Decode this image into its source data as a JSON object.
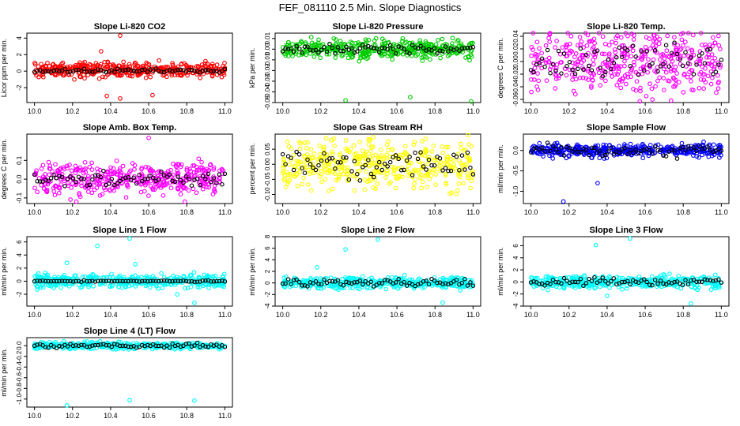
{
  "figure_title": "FEF_081110  2.5 Min. Slope Diagnostics",
  "chart_data": [
    {
      "type": "scatter",
      "title": "Slope Li-820 CO2",
      "ylabel": "Licor ppm per min.",
      "xlim": [
        9.96,
        11.04
      ],
      "ylim": [
        -3.8,
        4.6
      ],
      "xticks": [
        10.0,
        10.2,
        10.4,
        10.6,
        10.8,
        11.0
      ],
      "yticks": [
        -2,
        0,
        2,
        4
      ],
      "ytick_labels": [
        "-2",
        "0",
        "2",
        "4"
      ],
      "colors": {
        "gray": "#000000",
        "color": "#ff0000"
      },
      "series": [
        {
          "name": "color",
          "center": 0.2,
          "spread": 0.45,
          "outliers": [
            [
              10.45,
              4.3
            ],
            [
              10.45,
              -3.3
            ],
            [
              10.38,
              -3.0
            ],
            [
              10.62,
              -2.9
            ],
            [
              10.35,
              2.4
            ]
          ]
        },
        {
          "name": "black",
          "center": 0.05,
          "spread": 0.12,
          "outliers": []
        }
      ]
    },
    {
      "type": "scatter",
      "title": "Slope Li-820 Pressure",
      "ylabel": "kPa per min.",
      "xlim": [
        9.96,
        11.04
      ],
      "ylim": [
        -0.05,
        0.015
      ],
      "xticks": [
        10.0,
        10.2,
        10.4,
        10.6,
        10.8,
        11.0
      ],
      "yticks": [
        -0.05,
        -0.04,
        -0.03,
        -0.02,
        -0.01,
        0.0,
        0.01
      ],
      "ytick_labels": [
        "-0.05",
        "-0.04",
        "-0.03",
        "-0.02",
        "-0.01",
        "0.00",
        "0.01"
      ],
      "colors": {
        "gray": "#000000",
        "color": "#00cc00"
      },
      "series": [
        {
          "name": "color",
          "center": 0.0,
          "spread": 0.004,
          "outliers": [
            [
              10.33,
              -0.048
            ],
            [
              10.67,
              -0.045
            ],
            [
              10.99,
              -0.049
            ]
          ]
        },
        {
          "name": "black",
          "center": 0.0,
          "spread": 0.002,
          "outliers": []
        }
      ]
    },
    {
      "type": "scatter",
      "title": "Slope Li-820 Temp.",
      "ylabel": "degrees C per min.",
      "xlim": [
        9.96,
        11.04
      ],
      "ylim": [
        -0.065,
        0.045
      ],
      "xticks": [
        10.0,
        10.2,
        10.4,
        10.6,
        10.8,
        11.0
      ],
      "yticks": [
        -0.06,
        -0.04,
        -0.02,
        0.0,
        0.02,
        0.04
      ],
      "ytick_labels": [
        "-0.06",
        "-0.04",
        "-0.02",
        "0.00",
        "0.02",
        "0.04"
      ],
      "colors": {
        "gray": "#000000",
        "color": "#ff00ff"
      },
      "series": [
        {
          "name": "color",
          "center": 0.0,
          "spread": 0.025,
          "outliers": []
        },
        {
          "name": "black",
          "center": 0.0,
          "spread": 0.015,
          "outliers": []
        }
      ]
    },
    {
      "type": "scatter",
      "title": "Slope Amb. Box Temp.",
      "ylabel": "degrees C per min.",
      "xlim": [
        9.96,
        11.04
      ],
      "ylim": [
        -0.13,
        0.24
      ],
      "xticks": [
        10.0,
        10.2,
        10.4,
        10.6,
        10.8,
        11.0
      ],
      "yticks": [
        -0.1,
        0.0,
        0.1
      ],
      "ytick_labels": [
        "-0.1",
        "0.0",
        "0.1"
      ],
      "colors": {
        "gray": "#000000",
        "color": "#ff00ff"
      },
      "series": [
        {
          "name": "color",
          "center": 0.0,
          "spread": 0.04,
          "outliers": [
            [
              10.6,
              0.22
            ],
            [
              10.22,
              -0.12
            ],
            [
              10.79,
              -0.12
            ]
          ]
        },
        {
          "name": "black",
          "center": 0.0,
          "spread": 0.02,
          "outliers": []
        }
      ]
    },
    {
      "type": "scatter",
      "title": "Slope Gas Stream RH",
      "ylabel": "percent per min.",
      "xlim": [
        9.96,
        11.04
      ],
      "ylim": [
        -0.13,
        0.1
      ],
      "xticks": [
        10.0,
        10.2,
        10.4,
        10.6,
        10.8,
        11.0
      ],
      "yticks": [
        -0.1,
        -0.05,
        0.0,
        0.05
      ],
      "ytick_labels": [
        "-0.10",
        "-0.05",
        "0.00",
        "0.05"
      ],
      "colors": {
        "gray": "#000000",
        "color": "#ffff00"
      },
      "series": [
        {
          "name": "color",
          "center": 0.0,
          "spread": 0.04,
          "outliers": []
        },
        {
          "name": "black",
          "center": 0.0,
          "spread": 0.025,
          "outliers": []
        }
      ]
    },
    {
      "type": "scatter",
      "title": "Slope Sample Flow",
      "ylabel": "ml/min per min.",
      "xlim": [
        9.96,
        11.04
      ],
      "ylim": [
        -1.3,
        0.4
      ],
      "xticks": [
        10.0,
        10.2,
        10.4,
        10.6,
        10.8,
        11.0
      ],
      "yticks": [
        -1.0,
        -0.5,
        0.0
      ],
      "ytick_labels": [
        "-1.0",
        "-0.5",
        "0.0"
      ],
      "colors": {
        "gray": "#000000",
        "color": "#0000ff"
      },
      "series": [
        {
          "name": "color",
          "center": 0.0,
          "spread": 0.08,
          "outliers": [
            [
              10.17,
              -1.25
            ],
            [
              10.35,
              -0.8
            ]
          ]
        },
        {
          "name": "black",
          "center": 0.0,
          "spread": 0.08,
          "outliers": []
        }
      ]
    },
    {
      "type": "scatter",
      "title": "Slope Line 1 Flow",
      "ylabel": "ml/min per min.",
      "xlim": [
        9.96,
        11.04
      ],
      "ylim": [
        -3.8,
        6.8
      ],
      "xticks": [
        10.0,
        10.2,
        10.4,
        10.6,
        10.8,
        11.0
      ],
      "yticks": [
        -2,
        0,
        2,
        4,
        6
      ],
      "ytick_labels": [
        "-2",
        "0",
        "2",
        "4",
        "6"
      ],
      "colors": {
        "gray": "#000000",
        "color": "#00ffff"
      },
      "series": [
        {
          "name": "color",
          "center": 0.0,
          "spread": 0.5,
          "outliers": [
            [
              10.5,
              6.5
            ],
            [
              10.33,
              5.4
            ],
            [
              10.17,
              2.8
            ],
            [
              10.53,
              2.6
            ],
            [
              10.84,
              -3.3
            ],
            [
              10.75,
              -2.0
            ]
          ]
        },
        {
          "name": "black",
          "center": 0.0,
          "spread": 0.05,
          "outliers": []
        }
      ]
    },
    {
      "type": "scatter",
      "title": "Slope Line 2 Flow",
      "ylabel": "ml/min per min.",
      "xlim": [
        9.96,
        11.04
      ],
      "ylim": [
        -4,
        8
      ],
      "xticks": [
        10.0,
        10.2,
        10.4,
        10.6,
        10.8,
        11.0
      ],
      "yticks": [
        -4,
        -2,
        0,
        2,
        4,
        6,
        8
      ],
      "ytick_labels": [
        "-4",
        "-2",
        "0",
        "2",
        "4",
        "6",
        "8"
      ],
      "colors": {
        "gray": "#000000",
        "color": "#00ffff"
      },
      "series": [
        {
          "name": "color",
          "center": 0.0,
          "spread": 0.5,
          "outliers": [
            [
              10.5,
              7.5
            ],
            [
              10.33,
              5.8
            ],
            [
              10.84,
              -3.4
            ],
            [
              10.18,
              2.7
            ]
          ]
        },
        {
          "name": "black",
          "center": 0.0,
          "spread": 0.3,
          "outliers": []
        }
      ]
    },
    {
      "type": "scatter",
      "title": "Slope Line 3 Flow",
      "ylabel": "ml/min per min.",
      "xlim": [
        9.96,
        11.04
      ],
      "ylim": [
        -4,
        7.5
      ],
      "xticks": [
        10.0,
        10.2,
        10.4,
        10.6,
        10.8,
        11.0
      ],
      "yticks": [
        -4,
        -2,
        0,
        2,
        4,
        6
      ],
      "ytick_labels": [
        "-4",
        "-2",
        "0",
        "2",
        "4",
        "6"
      ],
      "colors": {
        "gray": "#000000",
        "color": "#00ffff"
      },
      "series": [
        {
          "name": "color",
          "center": 0.0,
          "spread": 0.5,
          "outliers": [
            [
              10.52,
              7.2
            ],
            [
              10.34,
              6.1
            ],
            [
              10.84,
              -3.6
            ],
            [
              10.4,
              -2.3
            ]
          ]
        },
        {
          "name": "black",
          "center": 0.0,
          "spread": 0.3,
          "outliers": []
        }
      ]
    },
    {
      "type": "scatter",
      "title": "Slope Line 4 (LT) Flow",
      "ylabel": "ml/min per min.",
      "xlim": [
        9.96,
        11.04
      ],
      "ylim": [
        -1.15,
        0.15
      ],
      "xticks": [
        10.0,
        10.2,
        10.4,
        10.6,
        10.8,
        11.0
      ],
      "yticks": [
        -1.0,
        -0.8,
        -0.6,
        -0.4,
        -0.2,
        0.0
      ],
      "ytick_labels": [
        "-1.0",
        "-0.8",
        "-0.6",
        "-0.4",
        "-0.2",
        "0.0"
      ],
      "colors": {
        "gray": "#000000",
        "color": "#00ffff"
      },
      "series": [
        {
          "name": "color",
          "center": 0.0,
          "spread": 0.03,
          "outliers": [
            [
              10.17,
              -1.12
            ],
            [
              10.5,
              -1.02
            ],
            [
              10.84,
              -1.03
            ]
          ]
        },
        {
          "name": "black",
          "center": 0.0,
          "spread": 0.02,
          "outliers": []
        }
      ]
    }
  ]
}
